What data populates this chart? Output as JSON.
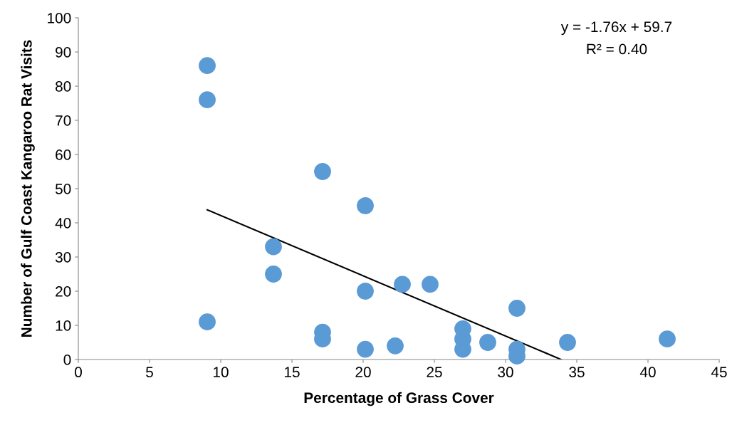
{
  "chart_data": {
    "type": "scatter",
    "xlabel": "Percentage of Grass Cover",
    "ylabel": "Number of Gulf Coast Kangaroo Rat Visits",
    "xlim": [
      0,
      45
    ],
    "xticks": [
      0,
      5,
      10,
      15,
      20,
      25,
      30,
      35,
      40,
      45
    ],
    "ylim": [
      0,
      100
    ],
    "yticks": [
      0,
      10,
      20,
      30,
      40,
      50,
      60,
      70,
      80,
      90,
      100
    ],
    "grid": false,
    "annotations": [
      "y = -1.76x + 59.7",
      "R² = 0.40"
    ],
    "series": [
      {
        "color": "#5b9bd5",
        "marker": "circle",
        "x": [
          9.05,
          9.05,
          9.05,
          13.7,
          13.7,
          17.15,
          17.15,
          17.15,
          20.15,
          20.15,
          20.15,
          22.25,
          22.75,
          24.7,
          27,
          27,
          27,
          28.75,
          30.8,
          30.8,
          30.8,
          34.35,
          41.35
        ],
        "values": [
          86,
          76,
          11,
          33,
          25,
          55,
          8,
          6,
          45,
          20,
          3,
          4,
          22,
          22,
          9,
          6,
          3,
          5,
          15,
          3,
          1,
          5,
          6
        ]
      },
      {
        "type": "line",
        "color": "#000000",
        "x": [
          9.05,
          33.9
        ],
        "values": [
          43.8,
          0
        ]
      }
    ]
  }
}
